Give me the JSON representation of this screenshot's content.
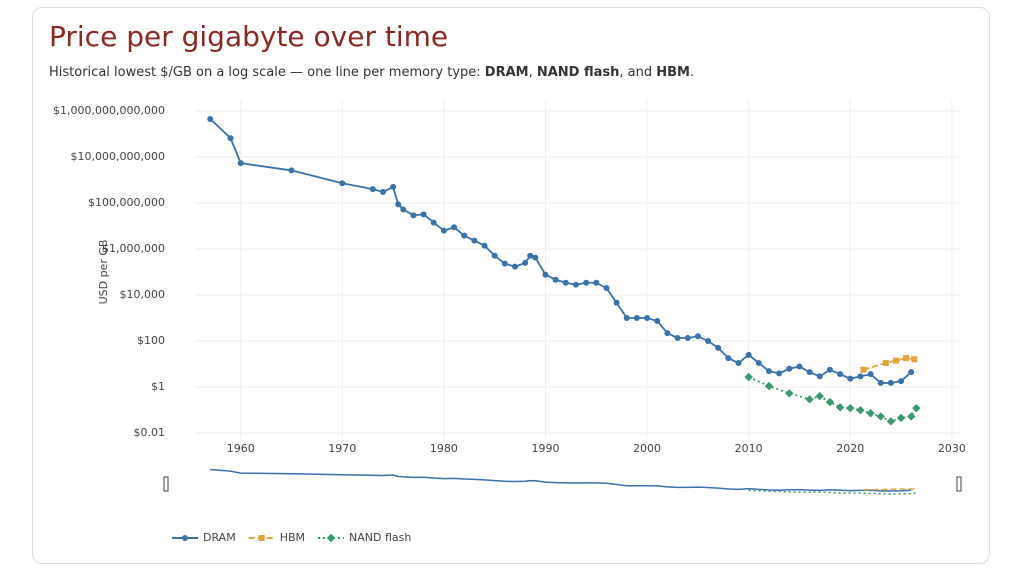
{
  "chart_data": {
    "type": "line",
    "title": "Price per gigabyte over time",
    "subtitle": [
      {
        "text": "Historical lowest $/GB on a log scale — one line per memory type: "
      },
      {
        "text": "DRAM",
        "bold": true
      },
      {
        "text": ", "
      },
      {
        "text": "NAND flash",
        "bold": true
      },
      {
        "text": ", and "
      },
      {
        "text": "HBM",
        "bold": true
      },
      {
        "text": "."
      }
    ],
    "y_label": "USD per GB",
    "log_y": true,
    "grid": true,
    "range_slider": true,
    "legend": "bottom",
    "xlim": [
      1955.5,
      2031
    ],
    "xticks": [
      1960,
      1970,
      1980,
      1990,
      2000,
      2010,
      2020,
      2030
    ],
    "ylim": [
      0.003,
      3000000000000
    ],
    "yticks": [
      {
        "value": 0.01,
        "label": "$0.01"
      },
      {
        "value": 1,
        "label": "$1"
      },
      {
        "value": 100,
        "label": "$100"
      },
      {
        "value": 10000,
        "label": "$10,000"
      },
      {
        "value": 1000000,
        "label": "$1,000,000"
      },
      {
        "value": 100000000,
        "label": "$100,000,000"
      },
      {
        "value": 10000000000,
        "label": "$10,000,000,000"
      },
      {
        "value": 1000000000000,
        "label": "$1,000,000,000,000"
      }
    ],
    "series": [
      {
        "name": "DRAM",
        "color": "#3a72ab",
        "dash": "solid",
        "marker": "circle",
        "x": [
          1957,
          1959,
          1960,
          1965,
          1970,
          1973,
          1974,
          1975,
          1975.5,
          1976,
          1977,
          1978,
          1979,
          1980,
          1981,
          1982,
          1983,
          1984,
          1985,
          1986,
          1987,
          1988,
          1988.5,
          1989,
          1990,
          1991,
          1992,
          1993,
          1994,
          1995,
          1996,
          1997,
          1998,
          1999,
          2000,
          2001,
          2002,
          2003,
          2004,
          2005,
          2006,
          2007,
          2008,
          2009,
          2010,
          2011,
          2012,
          2013,
          2014,
          2015,
          2016,
          2017,
          2018,
          2019,
          2020,
          2021,
          2022,
          2023,
          2024,
          2025,
          2026
        ],
        "values": [
          450000000000,
          66000000000,
          5400000000,
          2600000000,
          720000000,
          400000000,
          300000000,
          500000000,
          87000000,
          52000000,
          29000000,
          32000000,
          14000000,
          6300000,
          8800000,
          3800000,
          2300000,
          1400000,
          510000,
          230000,
          170000,
          250000,
          510000,
          420000,
          76000,
          46000,
          34000,
          28000,
          34000,
          34000,
          20000,
          4600,
          1000,
          1000,
          1000,
          740,
          220,
          135,
          135,
          160,
          100,
          50,
          18,
          11,
          25,
          11,
          4.9,
          3.9,
          6.2,
          7.8,
          4.4,
          2.9,
          5.6,
          3.6,
          2.3,
          2.9,
          3.6,
          1.5,
          1.5,
          1.8,
          4.4
        ]
      },
      {
        "name": "HBM",
        "color": "#e0a43a",
        "dash": "dashed",
        "marker": "square",
        "x": [
          2021.3,
          2023.5,
          2024.5,
          2025.5,
          2026.3
        ],
        "values": [
          5.6,
          11,
          14,
          18,
          16
        ]
      },
      {
        "name": "NAND flash",
        "color": "#3a9a6e",
        "dash": "dotted",
        "marker": "diamond",
        "x": [
          2010,
          2012,
          2014,
          2016,
          2017,
          2018,
          2019,
          2020,
          2021,
          2022,
          2023,
          2024,
          2025,
          2026,
          2026.5
        ],
        "values": [
          2.7,
          1.1,
          0.53,
          0.29,
          0.4,
          0.22,
          0.13,
          0.12,
          0.098,
          0.072,
          0.052,
          0.032,
          0.045,
          0.052,
          0.12
        ]
      }
    ]
  }
}
